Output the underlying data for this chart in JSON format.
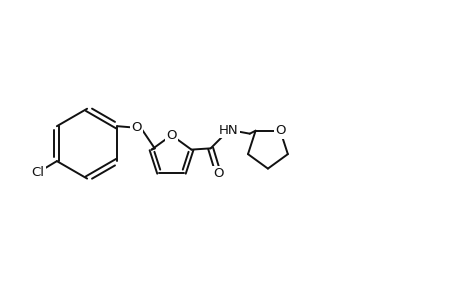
{
  "bg_color": "#ffffff",
  "line_color": "#111111",
  "line_width": 1.4,
  "font_size": 9.5,
  "fig_width": 4.6,
  "fig_height": 3.0,
  "dpi": 100,
  "xlim": [
    0.0,
    7.2
  ],
  "ylim": [
    0.5,
    3.5
  ]
}
